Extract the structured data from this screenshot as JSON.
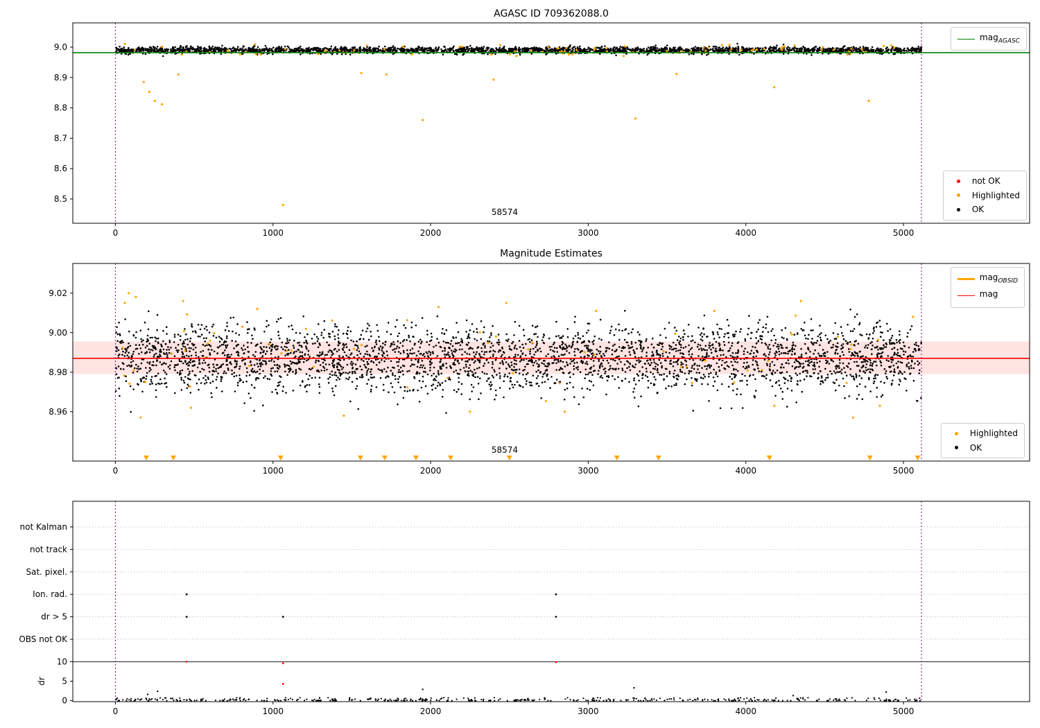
{
  "colors": {
    "ok": "#000000",
    "highlighted": "#ffa500",
    "not_ok": "#ff0000",
    "agasc_line": "#008000",
    "mag_line": "#ff0000",
    "band": "rgba(255,50,30,0.13)",
    "vline": "#800080",
    "grid": "#b0b0b0"
  },
  "chart_data": {
    "type": "scatter",
    "plots": [
      {
        "title": "AGASC ID 709362088.0",
        "xlim": [
          -270,
          5800
        ],
        "ylim": [
          8.42,
          9.08
        ],
        "xticks": [
          {
            "v": 0,
            "label": "0"
          },
          {
            "v": 1000,
            "label": "1000"
          },
          {
            "v": 2000,
            "label": "2000"
          },
          {
            "v": 3000,
            "label": "3000"
          },
          {
            "v": 4000,
            "label": "4000"
          },
          {
            "v": 5000,
            "label": "5000"
          }
        ],
        "yticks": [
          {
            "v": 8.5,
            "label": "8.5"
          },
          {
            "v": 8.6,
            "label": "8.6"
          },
          {
            "v": 8.7,
            "label": "8.7"
          },
          {
            "v": 8.8,
            "label": "8.8"
          },
          {
            "v": 8.9,
            "label": "8.9"
          },
          {
            "v": 9.0,
            "label": "9.0"
          }
        ],
        "vlines": [
          0,
          5114
        ],
        "hline": {
          "y": 8.982,
          "color": "#008000",
          "label_main": "mag",
          "label_sub": "AGASC"
        },
        "annotation": {
          "x": 2470,
          "label": "58574"
        },
        "legend_markers": [
          {
            "label": "not OK",
            "color": "#ff0000"
          },
          {
            "label": "Highlighted",
            "color": "#ffa500"
          },
          {
            "label": "OK",
            "color": "#000000"
          }
        ],
        "ok_cloud": {
          "n": 2800,
          "x_range": [
            0,
            5114
          ],
          "mean": 8.99,
          "sd": 0.0055,
          "clip": [
            8.963,
            9.012
          ],
          "seed": 42
        },
        "highlighted_cloud": {
          "n": 90,
          "x_range": [
            0,
            5114
          ],
          "mean": 8.99,
          "sd": 0.009,
          "clip": [
            8.935,
            9.015
          ],
          "seed": 7
        },
        "highlighted_outliers": [
          [
            180,
            8.885
          ],
          [
            215,
            8.853
          ],
          [
            250,
            8.823
          ],
          [
            295,
            8.812
          ],
          [
            400,
            8.91
          ],
          [
            1064,
            8.48
          ],
          [
            1560,
            8.915
          ],
          [
            1720,
            8.91
          ],
          [
            1950,
            8.76
          ],
          [
            2400,
            8.893
          ],
          [
            3300,
            8.765
          ],
          [
            3560,
            8.912
          ],
          [
            4180,
            8.868
          ],
          [
            4780,
            8.823
          ]
        ]
      },
      {
        "title": "Magnitude Estimates",
        "xlim": [
          -270,
          5800
        ],
        "ylim": [
          8.935,
          9.035
        ],
        "xticks": [
          {
            "v": 0,
            "label": "0"
          },
          {
            "v": 1000,
            "label": "1000"
          },
          {
            "v": 2000,
            "label": "2000"
          },
          {
            "v": 3000,
            "label": "3000"
          },
          {
            "v": 4000,
            "label": "4000"
          },
          {
            "v": 5000,
            "label": "5000"
          }
        ],
        "yticks": [
          {
            "v": 8.96,
            "label": "8.96"
          },
          {
            "v": 8.98,
            "label": "8.98"
          },
          {
            "v": 9.0,
            "label": "9.00"
          },
          {
            "v": 9.02,
            "label": "9.02"
          }
        ],
        "vlines": [
          0,
          5114
        ],
        "hline": {
          "y": 8.987,
          "color": "#ff0000",
          "label_main": "mag",
          "label_sub": ""
        },
        "band": {
          "y0": 8.979,
          "y1": 8.9955,
          "color": "rgba(255,50,30,0.13)"
        },
        "legend_lines": [
          {
            "label_main": "mag",
            "label_sub": "OBSID",
            "color": "#ffa500"
          },
          {
            "label_main": "mag",
            "label_sub": "",
            "color": "#ff0000"
          }
        ],
        "legend_markers": [
          {
            "label": "Highlighted",
            "color": "#ffa500"
          },
          {
            "label": "OK",
            "color": "#000000"
          }
        ],
        "annotation": {
          "x": 2470,
          "label": "58574"
        },
        "ok_cloud": {
          "n": 3300,
          "x_range": [
            0,
            5114
          ],
          "mean": 8.987,
          "sd": 0.0085,
          "clip": [
            8.955,
            9.012
          ],
          "seed": 11
        },
        "highlighted_cloud": {
          "n": 55,
          "x_range": [
            0,
            5114
          ],
          "mean": 8.99,
          "sd": 0.011,
          "clip": [
            8.956,
            9.02
          ],
          "seed": 23
        },
        "highlighted_outliers": [
          [
            60,
            9.015
          ],
          [
            85,
            9.02
          ],
          [
            130,
            9.018
          ],
          [
            160,
            8.957
          ],
          [
            190,
            8.975
          ],
          [
            430,
            9.016
          ],
          [
            480,
            8.962
          ],
          [
            900,
            9.012
          ],
          [
            1450,
            8.958
          ],
          [
            2050,
            9.013
          ],
          [
            2250,
            8.96
          ],
          [
            2480,
            9.015
          ],
          [
            2850,
            8.96
          ],
          [
            3050,
            9.011
          ],
          [
            3800,
            9.011
          ],
          [
            4180,
            8.963
          ],
          [
            4350,
            9.016
          ],
          [
            4680,
            8.957
          ],
          [
            4850,
            8.963
          ],
          [
            5060,
            9.008
          ]
        ],
        "clipped_markers_x": [
          196,
          368,
          1049,
          1555,
          1709,
          1907,
          2127,
          2500,
          3182,
          3446,
          4150,
          4787,
          5090
        ]
      },
      {
        "xlim": [
          -270,
          5800
        ],
        "categories": [
          "not Kalman",
          "not track",
          "Sat. pixel.",
          "Ion. rad.",
          "dr > 5",
          "OBS not OK"
        ],
        "dr_ticks": [
          {
            "v": 10,
            "label": "10"
          },
          {
            "v": 5,
            "label": "5"
          },
          {
            "v": 0,
            "label": "0"
          }
        ],
        "ylabel": "dr",
        "xticks": [
          {
            "v": 0,
            "label": "0"
          },
          {
            "v": 1000,
            "label": "1000"
          },
          {
            "v": 2000,
            "label": "2000"
          },
          {
            "v": 3000,
            "label": "3000"
          },
          {
            "v": 4000,
            "label": "4000"
          },
          {
            "v": 5000,
            "label": "5000"
          }
        ],
        "vlines": [
          0,
          5114
        ],
        "dr_hline": 10,
        "flag_points": [
          {
            "category": "Ion. rad.",
            "x": [
              452,
              2795
            ]
          },
          {
            "category": "dr > 5",
            "x": [
              452,
              1064,
              2795
            ]
          }
        ],
        "dr_points_not_ok": [
          [
            452,
            10.0
          ],
          [
            1064,
            9.6
          ],
          [
            2795,
            9.9
          ],
          [
            1064,
            4.3
          ]
        ],
        "dr_points_ok": [
          [
            205,
            1.6
          ],
          [
            268,
            2.4
          ],
          [
            1950,
            2.9
          ],
          [
            3290,
            3.3
          ],
          [
            4300,
            1.3
          ],
          [
            4890,
            2.2
          ]
        ],
        "ok_cloud": {
          "n": 430,
          "x_range": [
            0,
            5114
          ],
          "max": 0.8,
          "seed": 5
        }
      }
    ]
  }
}
